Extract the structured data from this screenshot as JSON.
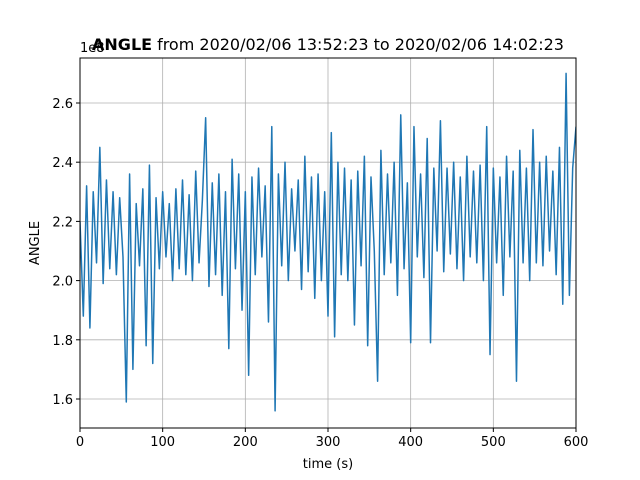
{
  "chart_data": {
    "type": "line",
    "title": {
      "bold": "ANGLE",
      "rest": "from 2020/02/06 13:52:23 to 2020/02/06 14:02:23"
    },
    "offset_label": "1e8",
    "xlabel": "time (s)",
    "ylabel": "ANGLE",
    "xlim": [
      0,
      600
    ],
    "xticks": [
      0,
      100,
      200,
      300,
      400,
      500,
      600
    ],
    "ylim": [
      1.502,
      2.752
    ],
    "yticks": [
      1.6,
      1.8,
      {
        "value": 2,
        "label": "2.0"
      },
      2.2,
      2.4,
      2.6
    ],
    "grid": true,
    "x": [
      0,
      4,
      8,
      12,
      16,
      20,
      24,
      28,
      32,
      36,
      40,
      44,
      48,
      52,
      56,
      60,
      64,
      68,
      72,
      76,
      80,
      84,
      88,
      92,
      96,
      100,
      104,
      108,
      112,
      116,
      120,
      124,
      128,
      132,
      136,
      140,
      144,
      148,
      152,
      156,
      160,
      164,
      168,
      172,
      176,
      180,
      184,
      188,
      192,
      196,
      200,
      204,
      208,
      212,
      216,
      220,
      224,
      228,
      232,
      236,
      240,
      244,
      248,
      252,
      256,
      260,
      264,
      268,
      272,
      276,
      280,
      284,
      288,
      292,
      296,
      300,
      304,
      308,
      312,
      316,
      320,
      324,
      328,
      332,
      336,
      340,
      344,
      348,
      352,
      356,
      360,
      364,
      368,
      372,
      376,
      380,
      384,
      388,
      392,
      396,
      400,
      404,
      408,
      412,
      416,
      420,
      424,
      428,
      432,
      436,
      440,
      444,
      448,
      452,
      456,
      460,
      464,
      468,
      472,
      476,
      480,
      484,
      488,
      492,
      496,
      500,
      504,
      508,
      512,
      516,
      520,
      524,
      528,
      532,
      536,
      540,
      544,
      548,
      552,
      556,
      560,
      564,
      568,
      572,
      576,
      580,
      584,
      588,
      592,
      596,
      600
    ],
    "series": [
      {
        "name": "ANGLE",
        "color": "#1f77b4",
        "values": [
          2.2,
          1.88,
          2.32,
          1.84,
          2.3,
          2.06,
          2.45,
          1.99,
          2.34,
          2.04,
          2.3,
          2.02,
          2.28,
          2.08,
          1.59,
          2.36,
          1.7,
          2.26,
          2.05,
          2.31,
          1.78,
          2.39,
          1.72,
          2.28,
          2.04,
          2.3,
          2.08,
          2.26,
          2.0,
          2.31,
          2.04,
          2.34,
          2.02,
          2.29,
          2.0,
          2.37,
          2.06,
          2.27,
          2.55,
          1.98,
          2.33,
          2.02,
          2.36,
          1.95,
          2.3,
          1.77,
          2.41,
          2.04,
          2.36,
          1.9,
          2.3,
          1.68,
          2.35,
          2.02,
          2.38,
          2.08,
          2.32,
          1.86,
          2.52,
          1.56,
          2.36,
          2.05,
          2.4,
          2.0,
          2.31,
          2.1,
          2.34,
          1.97,
          2.42,
          2.03,
          2.35,
          1.94,
          2.36,
          2.0,
          2.3,
          1.88,
          2.5,
          1.81,
          2.4,
          2.02,
          2.38,
          2.0,
          2.34,
          1.85,
          2.37,
          2.05,
          2.42,
          1.78,
          2.35,
          2.1,
          1.66,
          2.44,
          2.02,
          2.36,
          2.06,
          2.4,
          1.95,
          2.56,
          2.04,
          2.33,
          1.79,
          2.52,
          2.08,
          2.36,
          2.01,
          2.48,
          1.79,
          2.38,
          2.1,
          2.54,
          2.03,
          2.38,
          2.09,
          2.4,
          2.04,
          2.35,
          2.0,
          2.42,
          2.08,
          2.37,
          2.06,
          2.39,
          2.0,
          2.52,
          1.75,
          2.38,
          2.06,
          2.35,
          1.95,
          2.42,
          2.08,
          2.37,
          1.66,
          2.44,
          2.06,
          2.38,
          2.0,
          2.51,
          2.06,
          2.4,
          2.05,
          2.42,
          2.1,
          2.37,
          2.02,
          2.45,
          1.92,
          2.7,
          1.95,
          2.38,
          2.52
        ]
      }
    ]
  }
}
